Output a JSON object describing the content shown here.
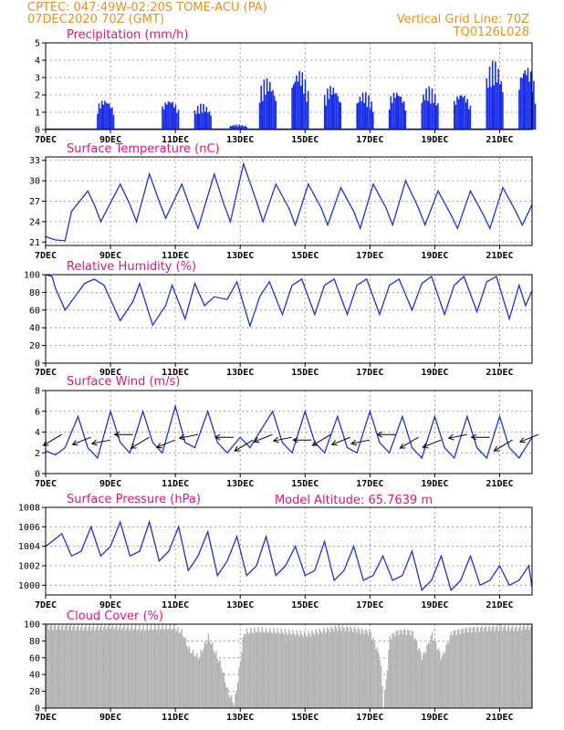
{
  "header": {
    "line1": "CPTEC:  047:49W-02:20S  TOME-ACU (PA)",
    "line2": "07DEC2020 70Z (GMT)",
    "right1": "Vertical Grid Line: 70Z",
    "right2": "TQ0126L028",
    "altitude": "Model Altitude: 65.7639 m"
  },
  "colors": {
    "header": "#e8901e",
    "title": "#e0157a",
    "line": "#2030e0",
    "bar": "#1a2ee8",
    "cloud": "#b3b3b3",
    "arrow": "#000000"
  },
  "chart_data": [
    {
      "type": "bar",
      "title": "Precipitation (mm/h)",
      "ylim": [
        0,
        5
      ],
      "yticks": [
        0,
        1,
        2,
        3,
        4,
        5
      ],
      "xticks": [
        "7DEC",
        "9DEC",
        "11DEC",
        "13DEC",
        "15DEC",
        "17DEC",
        "19DEC",
        "21DEC"
      ],
      "bursts": [
        {
          "day": 8.8,
          "peak": 1.8
        },
        {
          "day": 10.8,
          "peak": 1.8
        },
        {
          "day": 11.8,
          "peak": 1.5
        },
        {
          "day": 12.9,
          "peak": 0.3
        },
        {
          "day": 13.8,
          "peak": 3.0
        },
        {
          "day": 14.8,
          "peak": 3.5
        },
        {
          "day": 15.8,
          "peak": 2.6
        },
        {
          "day": 16.8,
          "peak": 2.2
        },
        {
          "day": 17.8,
          "peak": 2.3
        },
        {
          "day": 18.8,
          "peak": 2.5
        },
        {
          "day": 19.8,
          "peak": 2.2
        },
        {
          "day": 20.8,
          "peak": 4.0
        },
        {
          "day": 21.8,
          "peak": 3.8
        }
      ]
    },
    {
      "type": "line",
      "title": "Surface Temperature (nC)",
      "ylim": [
        20.5,
        33.5
      ],
      "yticks": [
        21,
        24,
        27,
        30,
        33
      ],
      "xticks": [
        "7DEC",
        "9DEC",
        "11DEC",
        "13DEC",
        "15DEC",
        "17DEC",
        "19DEC",
        "21DEC"
      ],
      "x": [
        7.0,
        7.3,
        7.6,
        7.8,
        8.3,
        8.5,
        8.7,
        9.3,
        9.6,
        9.8,
        10.2,
        10.5,
        10.7,
        11.2,
        11.5,
        11.7,
        12.2,
        12.5,
        12.7,
        13.1,
        13.5,
        13.7,
        14.1,
        14.5,
        14.7,
        15.1,
        15.5,
        15.7,
        16.1,
        16.5,
        16.7,
        17.1,
        17.5,
        17.7,
        18.1,
        18.5,
        18.7,
        19.1,
        19.5,
        19.7,
        20.1,
        20.5,
        20.7,
        21.1,
        21.5,
        21.7,
        22.0
      ],
      "values": [
        21.8,
        21.3,
        21.2,
        25.5,
        28.5,
        26.5,
        24.0,
        29.5,
        26.5,
        24.0,
        31.0,
        27.0,
        24.5,
        29.5,
        25.5,
        23.0,
        31.0,
        26.5,
        24.0,
        32.5,
        27.0,
        24.0,
        29.5,
        26.0,
        23.5,
        29.5,
        26.0,
        23.5,
        29.0,
        25.5,
        23.0,
        29.5,
        26.0,
        23.5,
        30.0,
        26.0,
        23.5,
        28.5,
        25.0,
        23.0,
        28.5,
        25.0,
        23.0,
        29.0,
        25.5,
        23.5,
        26.5
      ]
    },
    {
      "type": "line",
      "title": "Relative Humidity (%)",
      "ylim": [
        0,
        100
      ],
      "yticks": [
        0,
        20,
        40,
        60,
        80,
        100
      ],
      "xticks": [
        "7DEC",
        "9DEC",
        "11DEC",
        "13DEC",
        "15DEC",
        "17DEC",
        "19DEC",
        "21DEC"
      ],
      "x": [
        7.0,
        7.2,
        7.3,
        7.6,
        7.9,
        8.2,
        8.5,
        8.8,
        9.3,
        9.7,
        9.9,
        10.3,
        10.7,
        10.9,
        11.3,
        11.6,
        11.9,
        12.2,
        12.6,
        12.9,
        13.3,
        13.6,
        13.9,
        14.3,
        14.6,
        14.9,
        15.3,
        15.6,
        15.9,
        16.3,
        16.6,
        16.9,
        17.3,
        17.6,
        17.9,
        18.3,
        18.6,
        18.9,
        19.3,
        19.6,
        19.9,
        20.3,
        20.6,
        20.9,
        21.3,
        21.6,
        21.8,
        22.0
      ],
      "values": [
        100,
        98,
        85,
        60,
        75,
        90,
        95,
        88,
        48,
        70,
        90,
        43,
        65,
        88,
        50,
        90,
        65,
        75,
        72,
        92,
        42,
        75,
        92,
        55,
        88,
        95,
        55,
        88,
        95,
        55,
        88,
        95,
        55,
        88,
        95,
        60,
        90,
        98,
        55,
        88,
        98,
        58,
        92,
        98,
        50,
        88,
        65,
        82
      ]
    },
    {
      "type": "line",
      "title": "Surface Wind (m/s)",
      "ylim": [
        0,
        8
      ],
      "yticks": [
        0,
        2,
        4,
        6,
        8
      ],
      "xticks": [
        "7DEC",
        "9DEC",
        "11DEC",
        "13DEC",
        "15DEC",
        "17DEC",
        "19DEC",
        "21DEC"
      ],
      "x": [
        7.0,
        7.3,
        7.6,
        8.0,
        8.3,
        8.6,
        9.0,
        9.3,
        9.6,
        10.0,
        10.3,
        10.6,
        11.0,
        11.3,
        11.6,
        12.0,
        12.3,
        12.6,
        13.0,
        13.3,
        13.6,
        14.0,
        14.3,
        14.6,
        15.0,
        15.3,
        15.6,
        16.0,
        16.3,
        16.6,
        17.0,
        17.3,
        17.6,
        18.0,
        18.3,
        18.6,
        19.0,
        19.3,
        19.6,
        20.0,
        20.3,
        20.6,
        21.0,
        21.3,
        21.6,
        22.0
      ],
      "values": [
        2.2,
        1.8,
        2.5,
        5.5,
        2.5,
        1.5,
        6.0,
        3.0,
        2.0,
        6.0,
        3.0,
        2.0,
        6.5,
        3.0,
        2.5,
        6.0,
        3.0,
        2.0,
        3.5,
        2.5,
        4.0,
        6.0,
        3.0,
        2.0,
        6.0,
        3.0,
        2.0,
        5.5,
        2.5,
        2.0,
        6.0,
        3.0,
        2.0,
        5.5,
        2.5,
        1.5,
        5.5,
        2.5,
        1.5,
        5.5,
        2.5,
        1.5,
        5.5,
        2.5,
        1.5,
        3.5
      ],
      "arrows_x": [
        7.1,
        8.0,
        8.6,
        9.3,
        9.8,
        10.6,
        11.3,
        12.4,
        13.0,
        13.6,
        14.2,
        14.8,
        15.4,
        16.0,
        16.6,
        17.4,
        18.1,
        18.8,
        19.6,
        20.3,
        21.0,
        21.8
      ]
    },
    {
      "type": "line",
      "title": "Surface Pressure (hPa)",
      "ylim": [
        999,
        1008
      ],
      "yticks": [
        1000,
        1002,
        1004,
        1006,
        1008
      ],
      "xticks": [
        "7DEC",
        "9DEC",
        "11DEC",
        "13DEC",
        "15DEC",
        "17DEC",
        "19DEC",
        "21DEC"
      ],
      "x": [
        7.0,
        7.2,
        7.5,
        7.8,
        8.1,
        8.4,
        8.7,
        9.0,
        9.3,
        9.6,
        9.9,
        10.2,
        10.5,
        10.8,
        11.1,
        11.4,
        11.7,
        12.0,
        12.3,
        12.6,
        12.9,
        13.2,
        13.5,
        13.8,
        14.1,
        14.4,
        14.7,
        15.0,
        15.3,
        15.6,
        15.9,
        16.2,
        16.5,
        16.8,
        17.1,
        17.4,
        17.7,
        18.0,
        18.3,
        18.6,
        18.9,
        19.2,
        19.5,
        19.8,
        20.1,
        20.4,
        20.7,
        21.0,
        21.3,
        21.6,
        21.9,
        22.0
      ],
      "values": [
        1004.0,
        1004.5,
        1005.3,
        1003.0,
        1003.5,
        1006.0,
        1003.0,
        1004.0,
        1006.5,
        1003.0,
        1003.5,
        1006.5,
        1002.5,
        1003.5,
        1006.0,
        1001.5,
        1003.0,
        1005.5,
        1001.0,
        1002.5,
        1005.0,
        1001.0,
        1002.0,
        1005.0,
        1001.0,
        1002.0,
        1004.0,
        1001.0,
        1001.5,
        1004.5,
        1000.5,
        1001.5,
        1004.0,
        1000.5,
        1001.0,
        1003.0,
        1000.5,
        1001.0,
        1003.5,
        999.5,
        1000.5,
        1003.0,
        999.5,
        1000.5,
        1003.0,
        1000.0,
        1000.5,
        1002.0,
        1000.0,
        1000.5,
        1002.0,
        999.8
      ]
    },
    {
      "type": "area",
      "title": "Cloud Cover (%)",
      "ylim": [
        0,
        100
      ],
      "yticks": [
        0,
        20,
        40,
        60,
        80,
        100
      ],
      "xticks": [
        "7DEC",
        "9DEC",
        "11DEC",
        "13DEC",
        "15DEC",
        "17DEC",
        "19DEC",
        "21DEC"
      ],
      "x": [
        7.0,
        7.5,
        8.0,
        8.5,
        9.0,
        9.5,
        10.0,
        10.5,
        10.9,
        11.2,
        11.4,
        11.7,
        12.0,
        12.4,
        12.6,
        12.8,
        12.9,
        13.1,
        13.5,
        14.0,
        14.5,
        15.0,
        15.5,
        16.0,
        16.5,
        17.0,
        17.3,
        17.4,
        17.5,
        17.6,
        17.8,
        18.0,
        18.3,
        18.6,
        18.9,
        19.2,
        19.5,
        20.0,
        20.5,
        21.0,
        21.5,
        21.8,
        22.0
      ],
      "values": [
        97,
        97,
        96,
        96,
        97,
        96,
        95,
        96,
        96,
        90,
        70,
        60,
        85,
        50,
        20,
        5,
        30,
        90,
        93,
        92,
        90,
        88,
        92,
        96,
        94,
        90,
        60,
        4,
        40,
        85,
        90,
        92,
        90,
        60,
        88,
        60,
        90,
        94,
        95,
        96,
        95,
        97,
        97
      ]
    }
  ]
}
